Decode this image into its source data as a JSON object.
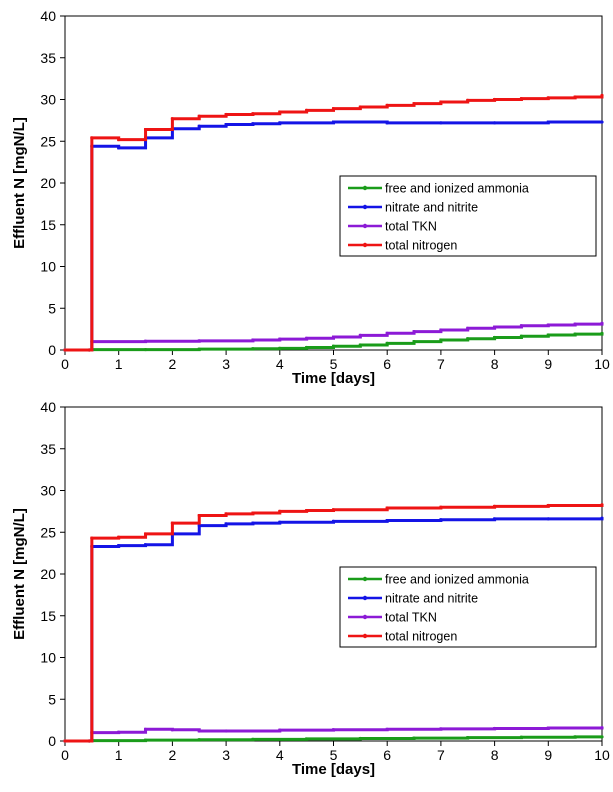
{
  "chart_data": [
    {
      "type": "line",
      "xlabel": "Time [days]",
      "ylabel": "Effluent N [mgN/L]",
      "xlim": [
        0,
        10
      ],
      "ylim": [
        0,
        40
      ],
      "xticks": [
        "0",
        "1",
        "2",
        "3",
        "4",
        "5",
        "6",
        "7",
        "8",
        "9",
        "10"
      ],
      "yticks": [
        "0",
        "5",
        "10",
        "15",
        "20",
        "25",
        "30",
        "35",
        "40"
      ],
      "grid": false,
      "legend_position": "center-right",
      "series": [
        {
          "name": "free and ionized ammonia",
          "color": "#1a9c1a",
          "x": [
            0,
            0.45,
            0.5,
            1.5,
            2.5,
            3.5,
            4,
            4.5,
            5,
            5.5,
            6,
            6.5,
            7,
            7.5,
            8,
            8.5,
            9,
            9.5,
            10
          ],
          "y": [
            0,
            0,
            0.05,
            0.05,
            0.1,
            0.15,
            0.2,
            0.3,
            0.45,
            0.6,
            0.8,
            1.0,
            1.2,
            1.35,
            1.5,
            1.65,
            1.8,
            1.9,
            2.0
          ]
        },
        {
          "name": "nitrate and nitrite",
          "color": "#1414e6",
          "x": [
            0,
            0.45,
            0.5,
            1,
            1.5,
            2,
            2.5,
            3,
            3.5,
            4,
            5,
            6,
            7,
            8,
            9,
            10
          ],
          "y": [
            0,
            0,
            24.4,
            24.2,
            25.4,
            26.5,
            26.8,
            27.0,
            27.1,
            27.2,
            27.3,
            27.2,
            27.2,
            27.2,
            27.3,
            27.3
          ]
        },
        {
          "name": "total TKN",
          "color": "#8c1ad6",
          "x": [
            0,
            0.45,
            0.5,
            1.5,
            2.5,
            3.5,
            4,
            4.5,
            5,
            5.5,
            6,
            6.5,
            7,
            7.5,
            8,
            8.5,
            9,
            9.5,
            10
          ],
          "y": [
            0,
            0,
            1.0,
            1.05,
            1.1,
            1.2,
            1.3,
            1.4,
            1.55,
            1.75,
            2.0,
            2.2,
            2.4,
            2.6,
            2.75,
            2.9,
            3.0,
            3.1,
            3.2
          ]
        },
        {
          "name": "total nitrogen",
          "color": "#ee1414",
          "x": [
            0,
            0.45,
            0.5,
            1,
            1.5,
            2,
            2.5,
            3,
            3.5,
            4,
            4.5,
            5,
            5.5,
            6,
            6.5,
            7,
            7.5,
            8,
            8.5,
            9,
            9.5,
            10
          ],
          "y": [
            0,
            0,
            25.4,
            25.2,
            26.4,
            27.7,
            28.0,
            28.2,
            28.3,
            28.5,
            28.7,
            28.9,
            29.1,
            29.3,
            29.5,
            29.7,
            29.9,
            30.0,
            30.1,
            30.2,
            30.3,
            30.5
          ]
        }
      ]
    },
    {
      "type": "line",
      "xlabel": "Time [days]",
      "ylabel": "Effluent N [mgN/L]",
      "xlim": [
        0,
        10
      ],
      "ylim": [
        0,
        40
      ],
      "xticks": [
        "0",
        "1",
        "2",
        "3",
        "4",
        "5",
        "6",
        "7",
        "8",
        "9",
        "10"
      ],
      "yticks": [
        "0",
        "5",
        "10",
        "15",
        "20",
        "25",
        "30",
        "35",
        "40"
      ],
      "grid": false,
      "legend_position": "bottom-right",
      "series": [
        {
          "name": "free and ionized ammonia",
          "color": "#1a9c1a",
          "x": [
            0,
            0.45,
            0.5,
            1.5,
            2.5,
            3.5,
            4.5,
            5.5,
            6.5,
            7.5,
            8.5,
            9.5,
            10
          ],
          "y": [
            0,
            0,
            0.05,
            0.1,
            0.15,
            0.2,
            0.25,
            0.3,
            0.35,
            0.4,
            0.45,
            0.5,
            0.5
          ]
        },
        {
          "name": "nitrate and nitrite",
          "color": "#1414e6",
          "x": [
            0,
            0.45,
            0.5,
            1,
            1.5,
            2,
            2.5,
            3,
            3.5,
            4,
            5,
            6,
            7,
            8,
            9,
            10
          ],
          "y": [
            0,
            0,
            23.3,
            23.4,
            23.5,
            24.8,
            25.8,
            26.0,
            26.1,
            26.2,
            26.3,
            26.4,
            26.5,
            26.6,
            26.6,
            26.7
          ]
        },
        {
          "name": "total TKN",
          "color": "#8c1ad6",
          "x": [
            0,
            0.45,
            0.5,
            1,
            1.5,
            2,
            2.5,
            3,
            4,
            5,
            6,
            7,
            8,
            9,
            10
          ],
          "y": [
            0,
            0,
            1.0,
            1.05,
            1.4,
            1.35,
            1.2,
            1.2,
            1.3,
            1.35,
            1.4,
            1.45,
            1.5,
            1.55,
            1.6
          ]
        },
        {
          "name": "total nitrogen",
          "color": "#ee1414",
          "x": [
            0,
            0.45,
            0.5,
            1,
            1.5,
            2,
            2.5,
            3,
            3.5,
            4,
            4.5,
            5,
            6,
            7,
            8,
            9,
            10
          ],
          "y": [
            0,
            0,
            24.3,
            24.4,
            24.8,
            26.1,
            27.0,
            27.2,
            27.3,
            27.5,
            27.6,
            27.7,
            27.9,
            28.0,
            28.1,
            28.2,
            28.3
          ]
        }
      ]
    }
  ]
}
